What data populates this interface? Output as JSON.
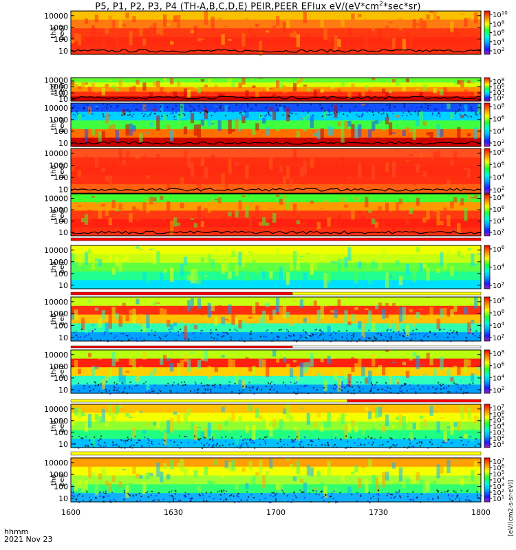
{
  "title": {
    "main": "P5, P1, P2, P3, P4 (TH-A,B,C,D,E) PEIR,PEER EFlux eV/(eV*cm",
    "sup": "2",
    "rest": "*sec*sr)"
  },
  "x_axis": {
    "name": "hhmm",
    "date": "2021 Nov 23",
    "ticks": [
      "1600",
      "1630",
      "1700",
      "1730",
      "1800"
    ]
  },
  "y_ticks": [
    "10000",
    "1000",
    "100",
    "10"
  ],
  "colorbar_unit": "[eV/(cm2-s-sr-eV)]",
  "colors": {
    "ion_high": "#ff2a10",
    "ion_core": "#cc0000",
    "yellow": "#f4ff00",
    "green": "#2aff3a",
    "cyan": "#00e0ff",
    "blue": "#0040ff",
    "frame": "#000000",
    "flag_red": "#ff0000",
    "flag_yellow": "#ffff00"
  },
  "chart_data": [
    {
      "type": "heatmap",
      "panel": "tha-peer",
      "ylabel": [
        "tha",
        "peer"
      ],
      "species": "electron",
      "probe": "P5 (TH-A)",
      "y_ticks": [
        10000,
        1000,
        100,
        10
      ],
      "colorbar_ticks": [
        "10",
        "8",
        "6",
        "4",
        "2"
      ],
      "colorbar_base": "10",
      "x_range": [
        "1600",
        "1800"
      ],
      "y_scale": "log",
      "ylim": [
        5,
        25000
      ]
    },
    {
      "type": "heatmap",
      "panel": "thb-peer",
      "ylabel": [
        "thb",
        "peer"
      ],
      "species": "electron",
      "probe": "P1 (TH-B)",
      "y_ticks": [
        10000,
        1000,
        100,
        10
      ],
      "colorbar_ticks": [
        "8",
        "6",
        "4",
        "2"
      ],
      "colorbar_base": "10",
      "x_range": [
        "1600",
        "1800"
      ],
      "y_scale": "log",
      "ylim": [
        5,
        25000
      ]
    },
    {
      "type": "heatmap",
      "panel": "thc-peer",
      "ylabel": [
        "thc",
        "peer"
      ],
      "species": "electron",
      "probe": "P2 (TH-C)",
      "y_ticks": [
        10000,
        1000,
        100,
        10
      ],
      "colorbar_ticks": [
        "8",
        "6",
        "4",
        "2"
      ],
      "colorbar_base": "10",
      "x_range": [
        "1600",
        "1800"
      ],
      "y_scale": "log",
      "ylim": [
        5,
        25000
      ]
    },
    {
      "type": "heatmap",
      "panel": "thd-peer",
      "ylabel": [
        "thd",
        "peer"
      ],
      "species": "electron",
      "probe": "P3 (TH-D)",
      "y_ticks": [
        10000,
        1000,
        100,
        10
      ],
      "colorbar_ticks": [
        "8",
        "6",
        "4",
        "2"
      ],
      "colorbar_base": "10",
      "x_range": [
        "1600",
        "1800"
      ],
      "y_scale": "log",
      "ylim": [
        5,
        25000
      ]
    },
    {
      "type": "heatmap",
      "panel": "the-peer",
      "ylabel": [
        "the",
        "peer"
      ],
      "species": "electron",
      "probe": "P4 (TH-E)",
      "y_ticks": [
        10000,
        1000,
        100,
        10
      ],
      "colorbar_ticks": [
        "8",
        "6",
        "4",
        "2"
      ],
      "colorbar_base": "10",
      "x_range": [
        "1600",
        "1800"
      ],
      "y_scale": "log",
      "ylim": [
        5,
        25000
      ]
    },
    {
      "type": "heatmap",
      "panel": "tha-peir",
      "ylabel": [
        "tha",
        "peir"
      ],
      "species": "ion",
      "probe": "P5 (TH-A)",
      "y_ticks": [
        10000,
        1000,
        100,
        10
      ],
      "colorbar_ticks": [
        "6",
        "4",
        "2"
      ],
      "colorbar_base": "10",
      "x_range": [
        "1600",
        "1800"
      ],
      "y_scale": "log",
      "ylim": [
        5,
        25000
      ]
    },
    {
      "type": "heatmap",
      "panel": "thb-peir",
      "ylabel": [
        "thb",
        "peir"
      ],
      "species": "ion",
      "probe": "P1 (TH-B)",
      "y_ticks": [
        10000,
        1000,
        100,
        10
      ],
      "colorbar_ticks": [
        "8",
        "6",
        "4",
        "2"
      ],
      "colorbar_base": "10",
      "x_range": [
        "1600",
        "1800"
      ],
      "y_scale": "log",
      "ylim": [
        5,
        25000
      ]
    },
    {
      "type": "heatmap",
      "panel": "thc-peir",
      "ylabel": [
        "thc",
        "peir"
      ],
      "species": "ion",
      "probe": "P2 (TH-C)",
      "y_ticks": [
        10000,
        1000,
        100,
        10
      ],
      "colorbar_ticks": [
        "8",
        "6",
        "4",
        "2"
      ],
      "colorbar_base": "10",
      "x_range": [
        "1600",
        "1800"
      ],
      "y_scale": "log",
      "ylim": [
        5,
        25000
      ]
    },
    {
      "type": "heatmap",
      "panel": "thd-peir",
      "ylabel": [
        "thd",
        "peir"
      ],
      "species": "ion",
      "probe": "P3 (TH-D)",
      "y_ticks": [
        10000,
        1000,
        100,
        10
      ],
      "colorbar_ticks": [
        "7",
        "6",
        "5",
        "4",
        "3",
        "2",
        "1"
      ],
      "colorbar_base": "10",
      "x_range": [
        "1600",
        "1800"
      ],
      "y_scale": "log",
      "ylim": [
        5,
        25000
      ]
    },
    {
      "type": "heatmap",
      "panel": "the-peir",
      "ylabel": [
        "the",
        "peir"
      ],
      "species": "ion",
      "probe": "P4 (TH-E)",
      "y_ticks": [
        10000,
        1000,
        100,
        10
      ],
      "colorbar_ticks": [
        "7",
        "6",
        "5",
        "4",
        "3",
        "2",
        "1"
      ],
      "colorbar_base": "10",
      "x_range": [
        "1600",
        "1800"
      ],
      "y_scale": "log",
      "ylim": [
        5,
        25000
      ]
    }
  ]
}
